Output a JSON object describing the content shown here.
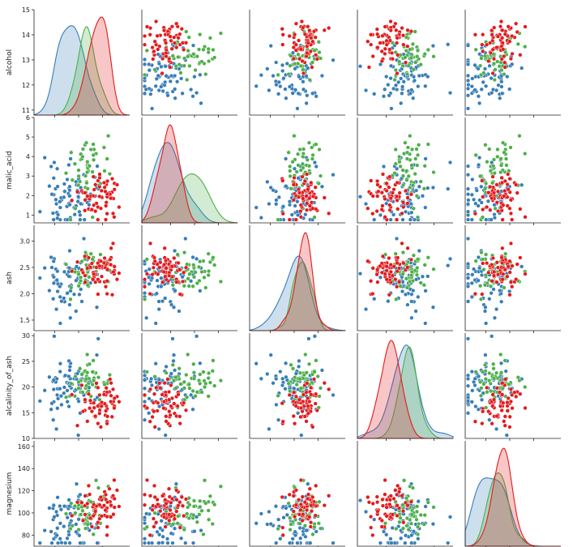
{
  "chart_data": {
    "type": "scatter",
    "subtype": "pairplot",
    "title": "",
    "variables": [
      "alcohol",
      "malic_acid",
      "ash",
      "alcalinity_of_ash",
      "magnesium"
    ],
    "visible_columns": 5,
    "diagonal": "kde",
    "legend": "none",
    "grid": false,
    "axes": {
      "alcohol": {
        "ylim": [
          10.8,
          15.0
        ],
        "ticks": [
          11,
          12,
          13,
          14,
          15
        ]
      },
      "malic_acid": {
        "ylim": [
          0.6,
          6.0
        ],
        "ticks": [
          1,
          2,
          3,
          4,
          5,
          6
        ]
      },
      "ash": {
        "ylim": [
          1.3,
          3.3
        ],
        "ticks": [
          1.5,
          2.0,
          2.5,
          3.0
        ],
        "tick_labels": [
          "1.5",
          "2.0",
          "2.5",
          "3.0"
        ]
      },
      "alcalinity_of_ash": {
        "ylim": [
          10.0,
          30.5
        ],
        "ticks": [
          10,
          15,
          20,
          25,
          30
        ]
      },
      "magnesium": {
        "ylim": [
          70,
          165
        ],
        "ticks": [
          80,
          100,
          120,
          140,
          160
        ]
      }
    },
    "classes": [
      {
        "id": "c0",
        "color": "#e41a1c",
        "means": {
          "alcohol": 13.7,
          "malic_acid": 1.9,
          "ash": 2.45,
          "alcalinity_of_ash": 17.0,
          "magnesium": 106
        },
        "sds": {
          "alcohol": 0.45,
          "malic_acid": 0.6,
          "ash": 0.2,
          "alcalinity_of_ash": 2.5,
          "magnesium": 10
        },
        "count": 59
      },
      {
        "id": "c1",
        "color": "#377eb8",
        "means": {
          "alcohol": 12.3,
          "malic_acid": 1.9,
          "ash": 2.25,
          "alcalinity_of_ash": 20.2,
          "magnesium": 94
        },
        "sds": {
          "alcohol": 0.55,
          "malic_acid": 0.9,
          "ash": 0.3,
          "alcalinity_of_ash": 3.3,
          "magnesium": 16
        },
        "count": 71
      },
      {
        "id": "c2",
        "color": "#4daf4a",
        "means": {
          "alcohol": 13.15,
          "malic_acid": 3.3,
          "ash": 2.43,
          "alcalinity_of_ash": 21.4,
          "magnesium": 99
        },
        "sds": {
          "alcohol": 0.5,
          "malic_acid": 1.0,
          "ash": 0.18,
          "alcalinity_of_ash": 2.2,
          "magnesium": 10.5
        },
        "count": 48
      }
    ]
  }
}
